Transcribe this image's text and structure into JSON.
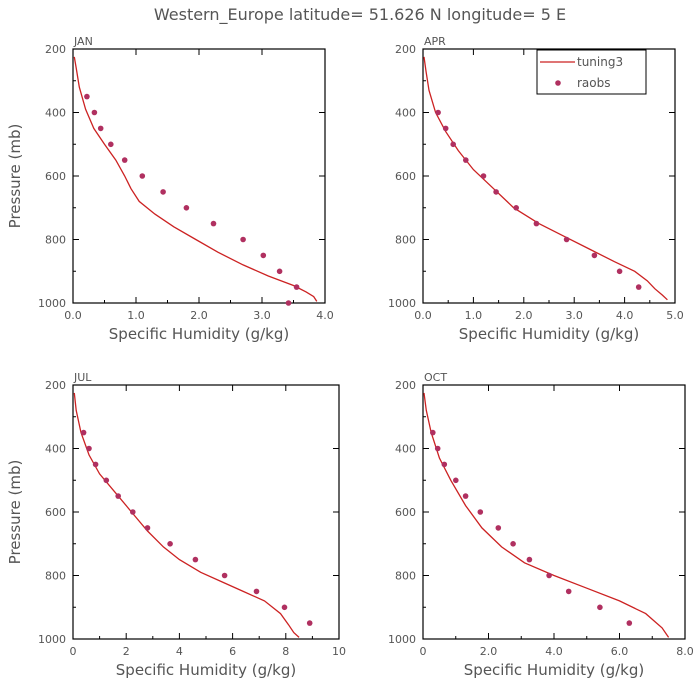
{
  "figure": {
    "title": "Western_Europe  latitude= 51.626 N longitude= 5 E"
  },
  "legend": {
    "model_label": "tuning3",
    "obs_label": "raobs"
  },
  "colors": {
    "model": "#cc2222",
    "obs": "#b03060",
    "axis": "#000000",
    "text": "#555555"
  },
  "chart_data": [
    {
      "type": "line",
      "panel": "JAN",
      "title": "JAN",
      "xlabel": "Specific Humidity (g/kg)",
      "ylabel": "Pressure (mb)",
      "xlim": [
        0,
        4
      ],
      "ylim": [
        200,
        1000
      ],
      "y_inverted": true,
      "xticks": [
        "0.0",
        "1.0",
        "2.0",
        "3.0",
        "4.0"
      ],
      "yticks": [
        "200",
        "400",
        "600",
        "800",
        "1000"
      ],
      "series": [
        {
          "name": "tuning3",
          "kind": "line",
          "x": [
            0.02,
            0.05,
            0.1,
            0.2,
            0.33,
            0.5,
            0.68,
            0.82,
            0.92,
            1.05,
            1.3,
            1.6,
            1.95,
            2.3,
            2.7,
            3.1,
            3.5,
            3.7,
            3.82,
            3.87
          ],
          "y": [
            225,
            260,
            320,
            390,
            450,
            500,
            550,
            600,
            640,
            680,
            720,
            760,
            800,
            840,
            880,
            915,
            945,
            965,
            980,
            995
          ]
        },
        {
          "name": "raobs",
          "kind": "scatter",
          "x": [
            0.22,
            0.34,
            0.44,
            0.6,
            0.82,
            1.1,
            1.43,
            1.8,
            2.23,
            2.7,
            3.02,
            3.28,
            3.55,
            3.42
          ],
          "y": [
            350,
            400,
            450,
            500,
            550,
            600,
            650,
            700,
            750,
            800,
            850,
            900,
            950,
            1000
          ]
        }
      ]
    },
    {
      "type": "line",
      "panel": "APR",
      "title": "APR",
      "xlabel": "Specific Humidity (g/kg)",
      "ylabel": "",
      "xlim": [
        0,
        5
      ],
      "ylim": [
        200,
        1000
      ],
      "y_inverted": true,
      "xticks": [
        "0.0",
        "1.0",
        "2.0",
        "3.0",
        "4.0",
        "5.0"
      ],
      "yticks": [
        "200",
        "400",
        "600",
        "800",
        "1000"
      ],
      "series": [
        {
          "name": "tuning3",
          "kind": "line",
          "x": [
            0.02,
            0.06,
            0.12,
            0.25,
            0.45,
            0.7,
            1.0,
            1.4,
            1.8,
            2.3,
            2.8,
            3.3,
            3.8,
            4.2,
            4.45,
            4.6,
            4.75,
            4.85
          ],
          "y": [
            225,
            270,
            330,
            400,
            460,
            520,
            580,
            640,
            700,
            750,
            790,
            830,
            870,
            900,
            930,
            955,
            975,
            990
          ]
        },
        {
          "name": "raobs",
          "kind": "scatter",
          "x": [
            0.3,
            0.45,
            0.6,
            0.85,
            1.2,
            1.45,
            1.85,
            2.25,
            2.85,
            3.4,
            3.9,
            4.28
          ],
          "y": [
            400,
            450,
            500,
            550,
            600,
            650,
            700,
            750,
            800,
            850,
            900,
            950
          ]
        }
      ]
    },
    {
      "type": "line",
      "panel": "JUL",
      "title": "JUL",
      "xlabel": "Specific Humidity (g/kg)",
      "ylabel": "Pressure (mb)",
      "xlim": [
        0,
        10
      ],
      "ylim": [
        200,
        1000
      ],
      "y_inverted": true,
      "xticks": [
        "0",
        "2",
        "4",
        "6",
        "8",
        "10"
      ],
      "yticks": [
        "200",
        "400",
        "600",
        "800",
        "1000"
      ],
      "series": [
        {
          "name": "tuning3",
          "kind": "line",
          "x": [
            0.05,
            0.12,
            0.3,
            0.6,
            1.0,
            1.6,
            2.2,
            2.8,
            3.4,
            4.0,
            4.8,
            5.6,
            6.4,
            7.2,
            7.8,
            8.1,
            8.3,
            8.5
          ],
          "y": [
            225,
            280,
            350,
            420,
            480,
            540,
            600,
            660,
            710,
            750,
            790,
            820,
            850,
            880,
            920,
            955,
            980,
            995
          ]
        },
        {
          "name": "raobs",
          "kind": "scatter",
          "x": [
            0.4,
            0.6,
            0.85,
            1.25,
            1.7,
            2.25,
            2.8,
            3.65,
            4.6,
            5.7,
            6.9,
            7.95,
            8.9
          ],
          "y": [
            350,
            400,
            450,
            500,
            550,
            600,
            650,
            700,
            750,
            800,
            850,
            900,
            950
          ]
        }
      ]
    },
    {
      "type": "line",
      "panel": "OCT",
      "title": "OCT",
      "xlabel": "Specific Humidity (g/kg)",
      "ylabel": "",
      "xlim": [
        0,
        8
      ],
      "ylim": [
        200,
        1000
      ],
      "y_inverted": true,
      "xticks": [
        "0",
        "2.0",
        "4.0",
        "6.0",
        "8.0"
      ],
      "yticks": [
        "200",
        "400",
        "600",
        "800",
        "1000"
      ],
      "series": [
        {
          "name": "tuning3",
          "kind": "line",
          "x": [
            0.03,
            0.1,
            0.25,
            0.5,
            0.85,
            1.3,
            1.8,
            2.4,
            3.1,
            4.0,
            5.0,
            6.0,
            6.8,
            7.3,
            7.5
          ],
          "y": [
            225,
            280,
            350,
            430,
            500,
            580,
            650,
            710,
            760,
            800,
            840,
            880,
            920,
            965,
            995
          ]
        },
        {
          "name": "raobs",
          "kind": "scatter",
          "x": [
            0.3,
            0.45,
            0.65,
            1.0,
            1.3,
            1.75,
            2.3,
            2.75,
            3.25,
            3.85,
            4.45,
            5.4,
            6.3
          ],
          "y": [
            350,
            400,
            450,
            500,
            550,
            600,
            650,
            700,
            750,
            800,
            850,
            900,
            950
          ]
        }
      ]
    }
  ]
}
